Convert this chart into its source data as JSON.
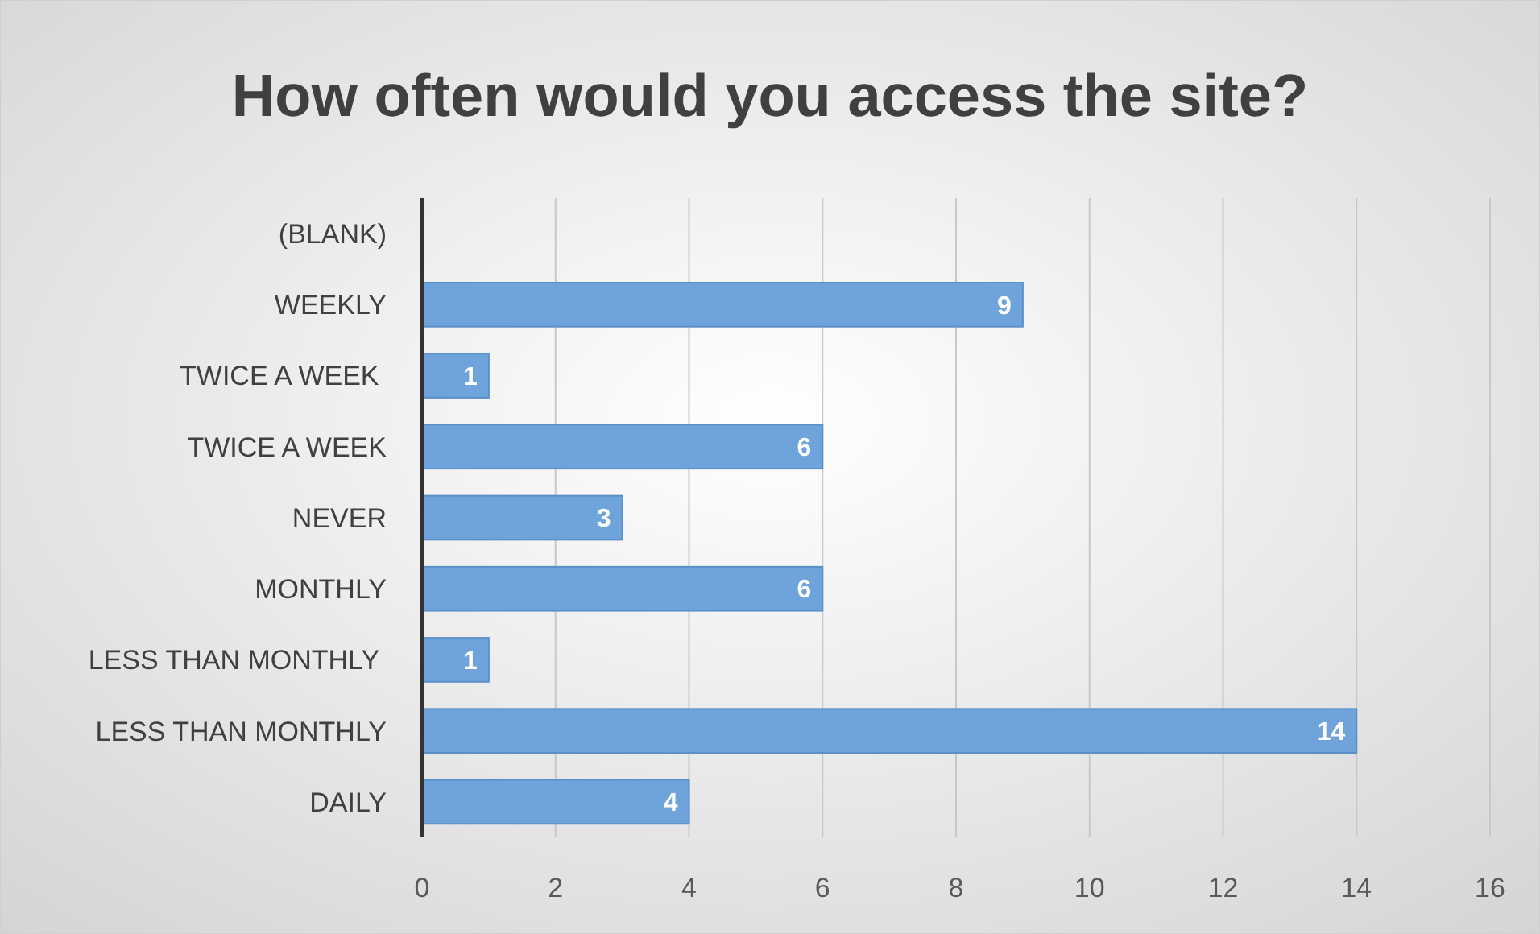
{
  "chart_data": {
    "type": "bar",
    "orientation": "horizontal",
    "title": "How often would you access the site?",
    "categories": [
      "(BLANK)",
      "WEEKLY",
      "TWICE A WEEK ",
      "TWICE A WEEK",
      "NEVER",
      "MONTHLY",
      "LESS THAN MONTHLY ",
      "LESS THAN MONTHLY",
      "DAILY"
    ],
    "values": [
      null,
      9,
      1,
      6,
      3,
      6,
      1,
      14,
      4
    ],
    "color": "#6fa3dc",
    "xlim": [
      0,
      16
    ],
    "xticks": [
      0,
      2,
      4,
      6,
      8,
      10,
      12,
      14,
      16
    ],
    "grid": "x",
    "data_labels": true
  }
}
